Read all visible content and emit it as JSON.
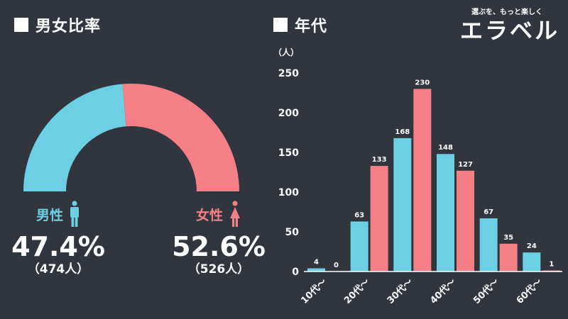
{
  "gender": {
    "title": "男女比率",
    "male": {
      "label": "男性",
      "percent": "47.4%",
      "count": "（474人）",
      "value": 474,
      "color": "#6dcfe3"
    },
    "female": {
      "label": "女性",
      "percent": "52.6%",
      "count": "（526人）",
      "value": 526,
      "color": "#f47f86"
    }
  },
  "age": {
    "title": "年代"
  },
  "logo": {
    "tagline": "選ぶを、もっと楽しく",
    "name": "エラベル"
  },
  "chart_data": {
    "type": "bar",
    "title": "年代",
    "ylabel": "（人）",
    "ylim": [
      0,
      250
    ],
    "yticks": [
      0,
      50,
      100,
      150,
      200,
      250
    ],
    "categories": [
      "10代〜",
      "20代〜",
      "30代〜",
      "40代〜",
      "50代〜",
      "60代〜"
    ],
    "series": [
      {
        "name": "男性",
        "color": "#6dcfe3",
        "values": [
          4,
          63,
          168,
          148,
          67,
          24
        ]
      },
      {
        "name": "女性",
        "color": "#f47f86",
        "values": [
          0,
          133,
          230,
          127,
          35,
          1
        ]
      }
    ],
    "grid": false,
    "legend": "none"
  }
}
